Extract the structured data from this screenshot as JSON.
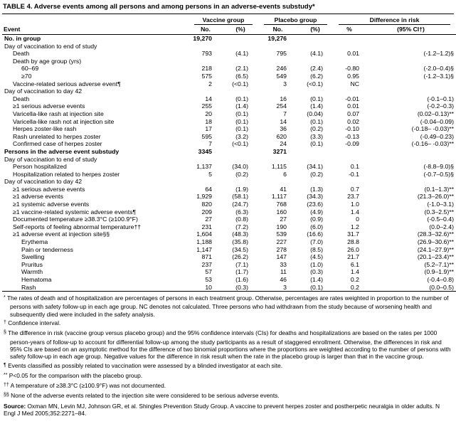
{
  "title": "TABLE 4. Adverse events among all persons and among persons in an adverse-events substudy*",
  "header": {
    "event": "Event",
    "groups": [
      "Vaccine group",
      "Placebo group",
      "Difference in risk"
    ],
    "cols": [
      "No.",
      "(%)",
      "No.",
      "(%)",
      "%",
      "(95% CI†)"
    ]
  },
  "table": {
    "rows": [
      {
        "type": "bold",
        "indent": 0,
        "label": "No. in group",
        "v_no": "19,270",
        "v_pct": "",
        "p_no": "19,276",
        "p_pct": "",
        "d_pct": "",
        "d_ci": ""
      },
      {
        "type": "section",
        "indent": 0,
        "label": "Day of vaccination to end of study"
      },
      {
        "type": "data",
        "indent": 1,
        "label": "Death",
        "v_no": "793",
        "v_pct": "(4.1)",
        "p_no": "795",
        "p_pct": "(4.1)",
        "d_pct": "0.01",
        "d_ci": "(-1.2–1.2)§"
      },
      {
        "type": "section",
        "indent": 1,
        "label": "Death by age group (yrs)"
      },
      {
        "type": "data",
        "indent": 2,
        "label": "60–69",
        "v_no": "218",
        "v_pct": "(2.1)",
        "p_no": "246",
        "p_pct": "(2.4)",
        "d_pct": "-0.80",
        "d_ci": "(-2.0–0.4)§"
      },
      {
        "type": "data",
        "indent": 2,
        "label": "≥70",
        "v_no": "575",
        "v_pct": "(6.5)",
        "p_no": "549",
        "p_pct": "(6.2)",
        "d_pct": "0.95",
        "d_ci": "(-1.2–3.1)§"
      },
      {
        "type": "data",
        "indent": 1,
        "label": "Vaccine-related serious adverse event¶",
        "v_no": "2",
        "v_pct": "(<0.1)",
        "p_no": "3",
        "p_pct": "(<0.1)",
        "d_pct": "NC",
        "d_ci": ""
      },
      {
        "type": "section",
        "indent": 0,
        "label": "Day of vaccination to day 42"
      },
      {
        "type": "data",
        "indent": 1,
        "label": "Death",
        "v_no": "14",
        "v_pct": "(0.1)",
        "p_no": "16",
        "p_pct": "(0.1)",
        "d_pct": "-0.01",
        "d_ci": "(-0.1–0.1)"
      },
      {
        "type": "data",
        "indent": 1,
        "label": "≥1 serious adverse events",
        "v_no": "255",
        "v_pct": "(1.4)",
        "p_no": "254",
        "p_pct": "(1.4)",
        "d_pct": "0.01",
        "d_ci": "(-0.2–0.3)"
      },
      {
        "type": "data",
        "indent": 1,
        "label": "Varicella-like rash at injection site",
        "v_no": "20",
        "v_pct": "(0.1)",
        "p_no": "7",
        "p_pct": "(0.04)",
        "d_pct": "0.07",
        "d_ci": "(0.02–0.13)**"
      },
      {
        "type": "data",
        "indent": 1,
        "label": "Varicella-like rash not at injection site",
        "v_no": "18",
        "v_pct": "(0.1)",
        "p_no": "14",
        "p_pct": "(0.1)",
        "d_pct": "0.02",
        "d_ci": "(-0.04–0.09)"
      },
      {
        "type": "data",
        "indent": 1,
        "label": "Herpes zoster-like rash",
        "v_no": "17",
        "v_pct": "(0.1)",
        "p_no": "36",
        "p_pct": "(0.2)",
        "d_pct": "-0.10",
        "d_ci": "(-0.18– -0.03)**"
      },
      {
        "type": "data",
        "indent": 1,
        "label": "Rash unrelated to herpes zoster",
        "v_no": "595",
        "v_pct": "(3.2)",
        "p_no": "620",
        "p_pct": "(3.3)",
        "d_pct": "-0.13",
        "d_ci": "(-0.49–0.23)"
      },
      {
        "type": "data",
        "indent": 1,
        "label": "Confirmed case of herpes zoster",
        "v_no": "7",
        "v_pct": "(<0.1)",
        "p_no": "24",
        "p_pct": "(0.1)",
        "d_pct": "-0.09",
        "d_ci": "(-0.16– -0.03)**"
      },
      {
        "type": "bold",
        "indent": 0,
        "label": "Persons in the adverse event substudy",
        "v_no": "3345",
        "v_pct": "",
        "p_no": "3271",
        "p_pct": "",
        "d_pct": "",
        "d_ci": ""
      },
      {
        "type": "section",
        "indent": 0,
        "label": "Day of vaccination to end of study"
      },
      {
        "type": "data",
        "indent": 1,
        "label": "Person hospitalized",
        "v_no": "1,137",
        "v_pct": "(34.0)",
        "p_no": "1,115",
        "p_pct": "(34.1)",
        "d_pct": "0.1",
        "d_ci": "(-8.8–9.0)§"
      },
      {
        "type": "data",
        "indent": 1,
        "label": "Hospitalization related to herpes zoster",
        "v_no": "5",
        "v_pct": "(0.2)",
        "p_no": "6",
        "p_pct": "(0.2)",
        "d_pct": "-0.1",
        "d_ci": "(-0.7–0.5)§"
      },
      {
        "type": "section",
        "indent": 0,
        "label": "Day of vaccination to day 42"
      },
      {
        "type": "data",
        "indent": 1,
        "label": "≥1 serious adverse events",
        "v_no": "64",
        "v_pct": "(1.9)",
        "p_no": "41",
        "p_pct": "(1.3)",
        "d_pct": "0.7",
        "d_ci": "(0.1–1.3)**"
      },
      {
        "type": "data",
        "indent": 1,
        "label": "≥1 adverse events",
        "v_no": "1,929",
        "v_pct": "(58.1)",
        "p_no": "1,117",
        "p_pct": "(34.3)",
        "d_pct": "23.7",
        "d_ci": "(21.3–26.0)**"
      },
      {
        "type": "data",
        "indent": 1,
        "label": "≥1 systemic adverse events",
        "v_no": "820",
        "v_pct": "(24.7)",
        "p_no": "768",
        "p_pct": "(23.6)",
        "d_pct": "1.0",
        "d_ci": "(-1.0–3.1)"
      },
      {
        "type": "data",
        "indent": 1,
        "label": "≥1 vaccine-related systemic adverse events¶",
        "v_no": "209",
        "v_pct": "(6.3)",
        "p_no": "160",
        "p_pct": "(4.9)",
        "d_pct": "1.4",
        "d_ci": "(0.3–2.5)**"
      },
      {
        "type": "data",
        "indent": 1,
        "label": "Documented temperature ≥38.3°C (≥100.9°F)",
        "v_no": "27",
        "v_pct": "(0.8)",
        "p_no": "27",
        "p_pct": "(0.9)",
        "d_pct": "0",
        "d_ci": "(-0.5–0.4)"
      },
      {
        "type": "data",
        "indent": 1,
        "label": "Self-reports of feeling abnormal temperature††",
        "v_no": "231",
        "v_pct": "(7.2)",
        "p_no": "190",
        "p_pct": "(6.0)",
        "d_pct": "1.2",
        "d_ci": "(0.0–2.4)"
      },
      {
        "type": "data",
        "indent": 1,
        "label": "≥1 adverse event at injection site§§",
        "v_no": "1,604",
        "v_pct": "(48.3)",
        "p_no": "539",
        "p_pct": "(16.6)",
        "d_pct": "31.7",
        "d_ci": "(28.3–32.6)**"
      },
      {
        "type": "data",
        "indent": 2,
        "label": "Erythema",
        "v_no": "1,188",
        "v_pct": "(35.8)",
        "p_no": "227",
        "p_pct": "(7.0)",
        "d_pct": "28.8",
        "d_ci": "(26.9–30.6)**"
      },
      {
        "type": "data",
        "indent": 2,
        "label": "Pain or tenderness",
        "v_no": "1,147",
        "v_pct": "(34.5)",
        "p_no": "278",
        "p_pct": "(8.5)",
        "d_pct": "26.0",
        "d_ci": "(24.1–27.9)**"
      },
      {
        "type": "data",
        "indent": 2,
        "label": "Swelling",
        "v_no": "871",
        "v_pct": "(26.2)",
        "p_no": "147",
        "p_pct": "(4.5)",
        "d_pct": "21.7",
        "d_ci": "(20.1–23.4)**"
      },
      {
        "type": "data",
        "indent": 2,
        "label": "Pruritus",
        "v_no": "237",
        "v_pct": "(7.1)",
        "p_no": "33",
        "p_pct": "(1.0)",
        "d_pct": "6.1",
        "d_ci": "(5.2–7.1)**"
      },
      {
        "type": "data",
        "indent": 2,
        "label": "Warmth",
        "v_no": "57",
        "v_pct": "(1.7)",
        "p_no": "11",
        "p_pct": "(0.3)",
        "d_pct": "1.4",
        "d_ci": "(0.9–1.9)**"
      },
      {
        "type": "data",
        "indent": 2,
        "label": "Hematoma",
        "v_no": "53",
        "v_pct": "(1.6)",
        "p_no": "46",
        "p_pct": "(1.4)",
        "d_pct": "0.2",
        "d_ci": "(-0.4–0.8)"
      },
      {
        "type": "data",
        "indent": 2,
        "label": "Rash",
        "v_no": "10",
        "v_pct": "(0.3)",
        "p_no": "3",
        "p_pct": "(0.1)",
        "d_pct": "0.2",
        "d_ci": "(0.0–0.5)"
      }
    ]
  },
  "footnotes": [
    {
      "marker": "*",
      "text": "The rates of death and of hospitalization are percentages of persons in each treatment group. Otherwise, percentages are rates weighted in proportion to the number of persons with safety follow-up in each age group. NC denotes not calculated. Three persons who had withdrawn from the study because of worsening health and subsequently died were included in the safety analysis."
    },
    {
      "marker": "†",
      "text": "Confidence interval."
    },
    {
      "marker": "§",
      "text": "The difference in risk (vaccine group versus placebo group) and the 95% confidence intervals (CIs) for deaths and hospitalizations are based on the rates per 1000 person-years of follow-up to account for differential follow-up among the study participants as a result of staggered enrollment. Otherwise, the differences in risk and 95% CIs are based on an asymptotic method for the difference of two binomial proportions where the proportions are weighted according to the number of persons with safety follow-up in each age group. Negative values for the difference in risk result when the rate in the placebo group is larger than that in the vaccine group."
    },
    {
      "marker": "¶",
      "text": "Events classified as possibly related to vaccination were assessed by a blinded investigator at each site."
    },
    {
      "marker": "**",
      "text": "P<0.05 for the comparison with the placebo group."
    },
    {
      "marker": "††",
      "text": "A temperature of ≥38.3°C (≥100.9°F) was not documented."
    },
    {
      "marker": "§§",
      "text": "None of the adverse events related to the injection site were considered to be serious adverse events."
    },
    {
      "marker": "Source:",
      "source": true,
      "text": "Oxman MN, Levin MJ, Johnson GR, et al. Shingles Prevention Study Group. A vaccine to prevent herpes zoster and postherpetic neuralgia in older adults. N Engl J Med 2005;352:2271–84."
    }
  ]
}
